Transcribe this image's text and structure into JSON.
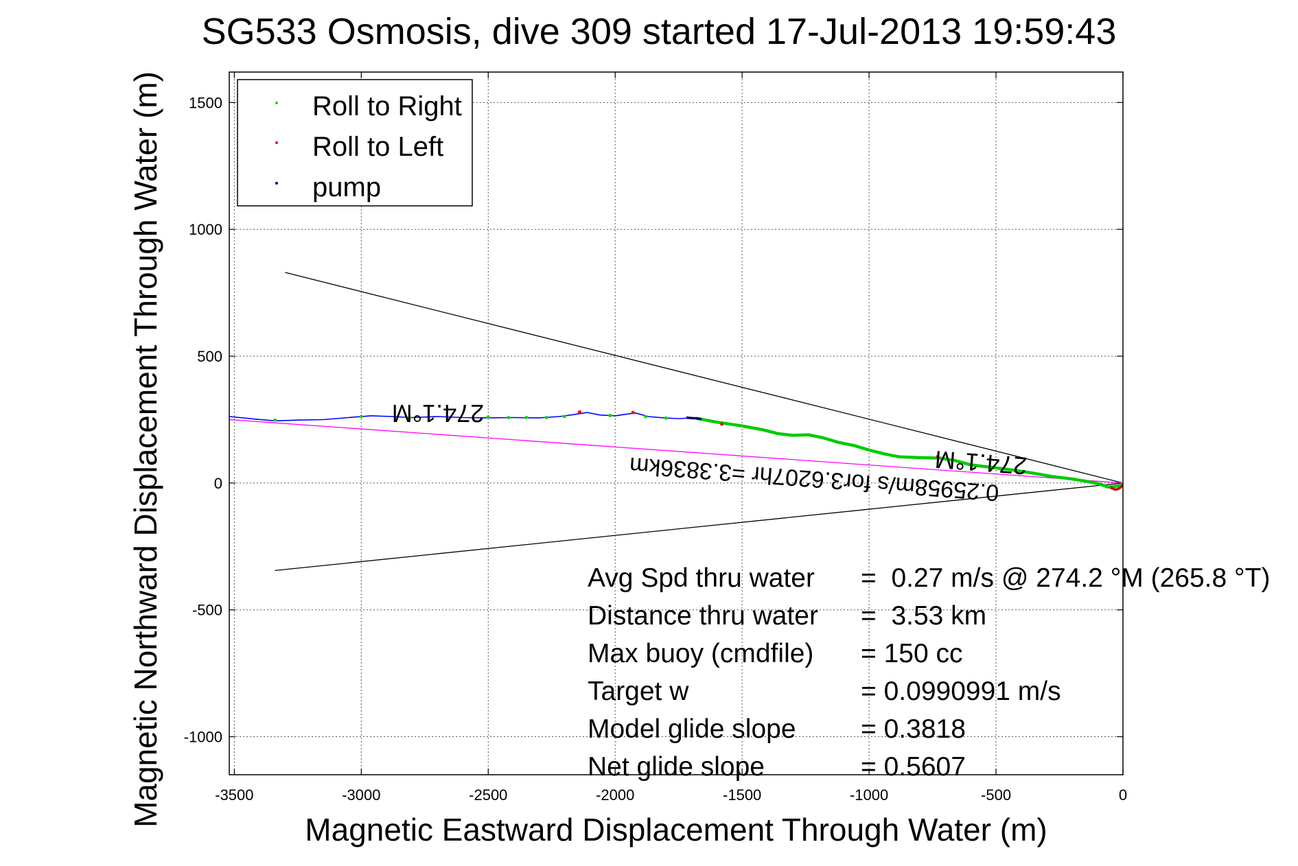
{
  "chart_data": {
    "type": "line",
    "title": "SG533 Osmosis, dive 309 started 17-Jul-2013 19:59:43",
    "xlabel": "Magnetic Eastward Displacement Through Water (m)",
    "ylabel": "Magnetic Northward Displacement Through Water (m)",
    "xlim": [
      -3520,
      0
    ],
    "ylim": [
      -1150,
      1620
    ],
    "xticks": [
      -3500,
      -3000,
      -2500,
      -2000,
      -1500,
      -1000,
      -500,
      0
    ],
    "yticks": [
      -1000,
      -500,
      0,
      500,
      1000,
      1500
    ],
    "grid": true,
    "legend": {
      "placement": "top-left",
      "entries": [
        {
          "label": "Roll to Right",
          "color": "#00dd00",
          "marker": "dot"
        },
        {
          "label": "Roll to Left",
          "color": "#ff0000",
          "marker": "dot"
        },
        {
          "label": "pump",
          "color": "#000080",
          "marker": "dot"
        }
      ]
    },
    "series": [
      {
        "color": "#0000ff",
        "x": [
          -3520,
          -3420,
          -3340,
          -3250,
          -3150,
          -3050,
          -2960,
          -2880,
          -2800,
          -2700,
          -2600,
          -2500,
          -2400,
          -2300,
          -2220,
          -2160,
          -2110,
          -2060,
          -2000,
          -1950,
          -1920,
          -1870,
          -1800,
          -1750,
          -1700,
          -1680
        ],
        "y": [
          262,
          252,
          245,
          248,
          250,
          258,
          265,
          262,
          258,
          262,
          258,
          257,
          258,
          257,
          262,
          270,
          278,
          268,
          265,
          272,
          276,
          262,
          256,
          254,
          256,
          255
        ]
      },
      {
        "color": "#00cc00",
        "x": [
          -1680,
          -1600,
          -1500,
          -1420,
          -1360,
          -1300,
          -1240,
          -1180,
          -1120,
          -1060,
          -1000,
          -940,
          -880,
          -800,
          -720,
          -660,
          -600,
          -520,
          -440,
          -360,
          -280,
          -200,
          -140,
          -90,
          -60,
          -40,
          -20,
          0
        ],
        "y": [
          255,
          240,
          225,
          210,
          195,
          188,
          190,
          178,
          160,
          148,
          130,
          115,
          103,
          100,
          98,
          88,
          72,
          62,
          52,
          40,
          26,
          16,
          6,
          -4,
          -16,
          -14,
          -12,
          -4
        ]
      },
      {
        "color": "#000066",
        "x": [
          -1720,
          -1700,
          -1680,
          -1660
        ],
        "y": [
          258,
          256,
          255,
          252
        ]
      },
      {
        "color": "#cc0000",
        "x": [
          -50,
          -40,
          -30,
          -20,
          -10,
          0
        ],
        "y": [
          -18,
          -22,
          -26,
          -24,
          -18,
          -8
        ]
      }
    ],
    "turn_points": [
      {
        "color": "#ff0000",
        "x": [
          -2140,
          -1930,
          -730,
          -1580
        ],
        "y": [
          280,
          278,
          104,
          232
        ]
      },
      {
        "color": "#00dd00",
        "x": [
          -3340,
          -3000,
          -2810,
          -2500,
          -2420,
          -2350,
          -2270,
          -2200,
          -2020,
          -1880,
          -1800
        ],
        "y": [
          248,
          262,
          258,
          260,
          258,
          258,
          258,
          262,
          266,
          262,
          256
        ]
      }
    ],
    "reference_lines": [
      {
        "color": "#000000",
        "x": [
          -3300,
          0
        ],
        "y": [
          830,
          0
        ]
      },
      {
        "color": "#000000",
        "x": [
          -3340,
          0
        ],
        "y": [
          -345,
          0
        ]
      },
      {
        "color": "#ff00ff",
        "x": [
          -3520,
          0
        ],
        "y": [
          250,
          0
        ]
      }
    ],
    "annotations": {
      "heading_upper": "274.1°M",
      "heading_lower": "274.1°M",
      "speed_line": "0.25958m/s for3.6207hr =3.3836km"
    },
    "stats": [
      {
        "label": "Avg Spd thru water",
        "value": "=  0.27 m/s @ 274.2 °M (265.8 °T)"
      },
      {
        "label": "Distance thru water",
        "value": "=  3.53 km"
      },
      {
        "label": "Max buoy (cmdfile)",
        "value": "= 150 cc"
      },
      {
        "label": "Target w",
        "value": "= 0.0990991 m/s"
      },
      {
        "label": "Model glide slope",
        "value": "= 0.3818"
      },
      {
        "label": "Net glide slope",
        "value": "= 0.5607"
      }
    ]
  }
}
